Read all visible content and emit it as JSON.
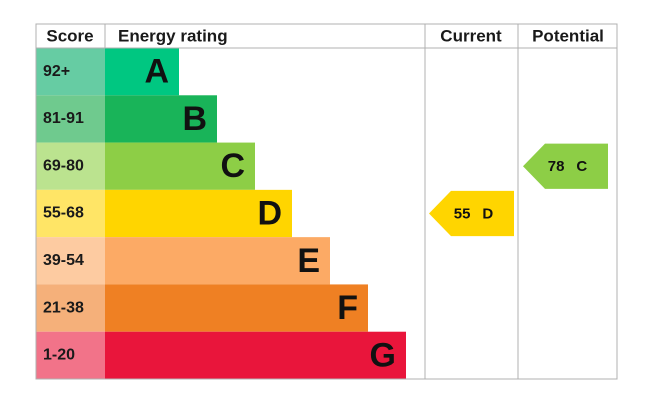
{
  "header": {
    "score": "Score",
    "rating": "Energy rating",
    "current": "Current",
    "potential": "Potential"
  },
  "bands": [
    {
      "score": "92+",
      "letter": "A",
      "color": "#00c781",
      "score_color": "#66cca3"
    },
    {
      "score": "81-91",
      "letter": "B",
      "color": "#19b459",
      "score_color": "#6fca8e"
    },
    {
      "score": "69-80",
      "letter": "C",
      "color": "#8dce46",
      "score_color": "#bbe38f"
    },
    {
      "score": "55-68",
      "letter": "D",
      "color": "#ffd500",
      "score_color": "#ffe566"
    },
    {
      "score": "39-54",
      "letter": "E",
      "color": "#fcaa65",
      "score_color": "#fdcba1"
    },
    {
      "score": "21-38",
      "letter": "F",
      "color": "#ef8023",
      "score_color": "#f5b07a"
    },
    {
      "score": "1-20",
      "letter": "G",
      "color": "#e9153b",
      "score_color": "#f27389"
    }
  ],
  "current": {
    "value": 55,
    "letter": "D"
  },
  "potential": {
    "value": 78,
    "letter": "C"
  }
}
